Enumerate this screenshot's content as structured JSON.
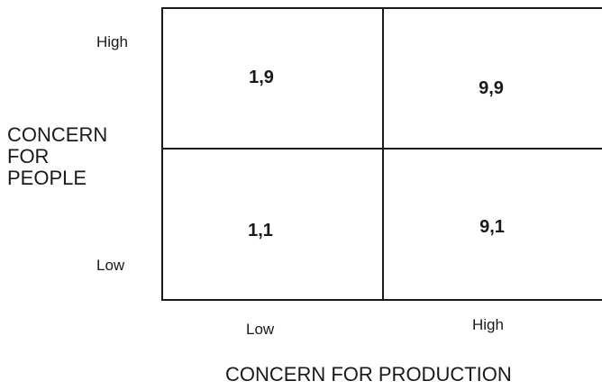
{
  "diagram": {
    "cells": {
      "top_left": "1,9",
      "top_right": "9,9",
      "bottom_left": "1,1",
      "bottom_right": "9,1"
    },
    "y_axis": {
      "title_lines": [
        "CONCERN",
        "FOR",
        "PEOPLE"
      ],
      "high_label": "High",
      "low_label": "Low"
    },
    "x_axis": {
      "title": "CONCERN FOR PRODUCTION",
      "low_label": "Low",
      "high_label": "High"
    }
  }
}
